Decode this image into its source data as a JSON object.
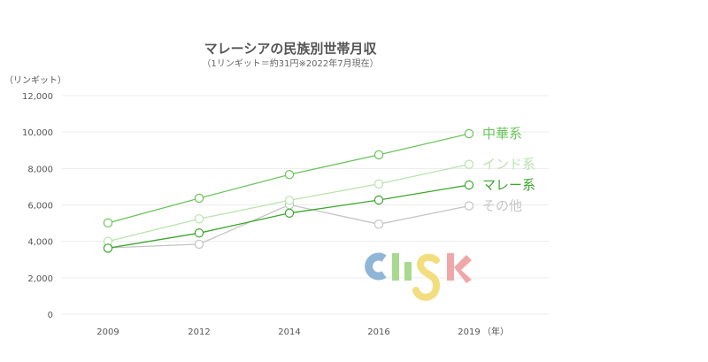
{
  "chart_data": {
    "type": "line",
    "title": "マレーシアの民族別世帯月収",
    "subtitle": "（1リンギット＝約31円※2022年7月現在）",
    "ylabel": "（リンギット）",
    "xunit": "（年）",
    "categories": [
      "2009",
      "2012",
      "2014",
      "2016",
      "2019"
    ],
    "yticks": [
      "0",
      "2,000",
      "4,000",
      "6,000",
      "8,000",
      "10,000",
      "12,000"
    ],
    "ylim": [
      0,
      12000
    ],
    "grid": true,
    "series": [
      {
        "name": "中華系",
        "values": [
          5011,
          6366,
          7666,
          8750,
          9906
        ],
        "color": "#6cc45b"
      },
      {
        "name": "インド系",
        "values": [
          3999,
          5233,
          6246,
          7150,
          8225
        ],
        "color": "#b9e3ad"
      },
      {
        "name": "マレー系",
        "values": [
          3624,
          4457,
          5548,
          6267,
          7093
        ],
        "color": "#3ba72b"
      },
      {
        "name": "その他",
        "values": [
          3640,
          3843,
          6011,
          4939,
          5947
        ],
        "color": "#c4c4c4"
      }
    ]
  },
  "logo": {
    "text": "clisk",
    "colors": {
      "c": "#8fb6d6",
      "l": "#a9d98f",
      "i": "#a9d98f",
      "s": "#f2de7e",
      "k": "#f0a7a8"
    }
  }
}
